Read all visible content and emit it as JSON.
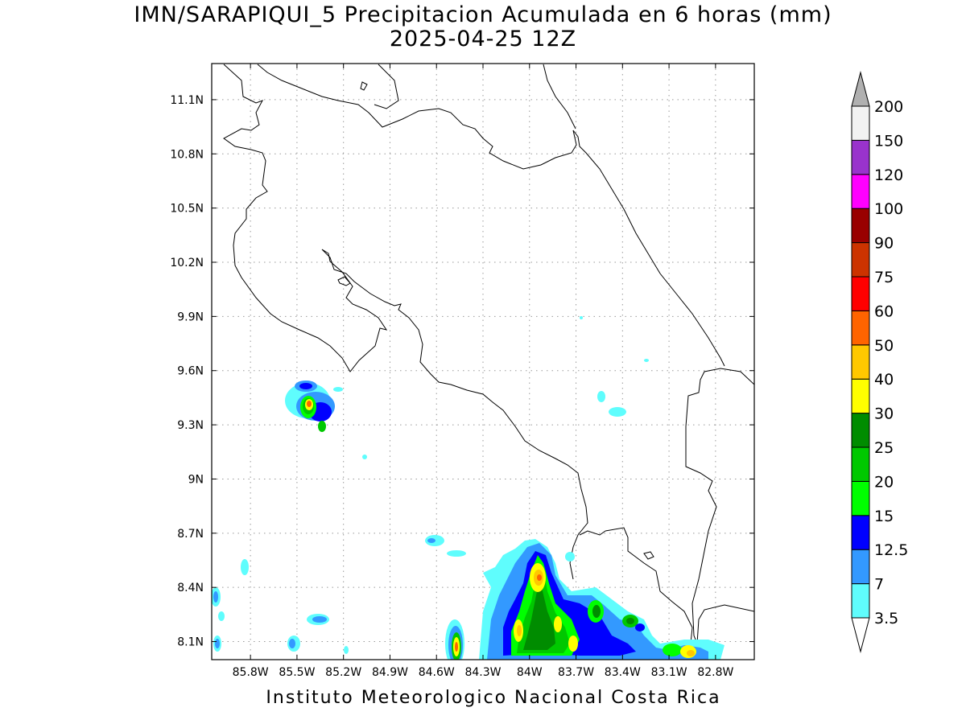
{
  "title_line1": "IMN/SARAPIQUI_5 Precipitacion Acumulada en 6 horas (mm)",
  "title_line2": "2025-04-25 12Z",
  "footer": "Instituto Meteorologico Nacional Costa Rica",
  "map": {
    "lon_range": [
      -86.05,
      -82.55
    ],
    "lat_range": [
      8.0,
      11.3
    ],
    "lon_ticks": [
      {
        "value": -85.8,
        "label": "85.8W"
      },
      {
        "value": -85.5,
        "label": "85.5W"
      },
      {
        "value": -85.2,
        "label": "85.2W"
      },
      {
        "value": -84.9,
        "label": "84.9W"
      },
      {
        "value": -84.6,
        "label": "84.6W"
      },
      {
        "value": -84.3,
        "label": "84.3W"
      },
      {
        "value": -84.0,
        "label": "84W"
      },
      {
        "value": -83.7,
        "label": "83.7W"
      },
      {
        "value": -83.4,
        "label": "83.4W"
      },
      {
        "value": -83.1,
        "label": "83.1W"
      },
      {
        "value": -82.8,
        "label": "82.8W"
      }
    ],
    "lat_ticks": [
      {
        "value": 8.1,
        "label": "8.1N"
      },
      {
        "value": 8.4,
        "label": "8.4N"
      },
      {
        "value": 8.7,
        "label": "8.7N"
      },
      {
        "value": 9.0,
        "label": "9N"
      },
      {
        "value": 9.3,
        "label": "9.3N"
      },
      {
        "value": 9.6,
        "label": "9.6N"
      },
      {
        "value": 9.9,
        "label": "9.9N"
      },
      {
        "value": 10.2,
        "label": "10.2N"
      },
      {
        "value": 10.5,
        "label": "10.5N"
      },
      {
        "value": 10.8,
        "label": "10.8N"
      },
      {
        "value": 11.1,
        "label": "11.1N"
      }
    ],
    "grid": true
  },
  "legend": {
    "units": "mm",
    "levels": [
      {
        "label": "3.5",
        "color": "#5ffdfd"
      },
      {
        "label": "7",
        "color": "#3399ff"
      },
      {
        "label": "12.5",
        "color": "#0000ff"
      },
      {
        "label": "15",
        "color": "#00ff00"
      },
      {
        "label": "20",
        "color": "#00c800"
      },
      {
        "label": "25",
        "color": "#008c00"
      },
      {
        "label": "30",
        "color": "#ffff00"
      },
      {
        "label": "40",
        "color": "#ffc800"
      },
      {
        "label": "50",
        "color": "#ff6400"
      },
      {
        "label": "60",
        "color": "#ff0000"
      },
      {
        "label": "75",
        "color": "#cc3300"
      },
      {
        "label": "90",
        "color": "#990000"
      },
      {
        "label": "100",
        "color": "#ff00ff"
      },
      {
        "label": "120",
        "color": "#9933cc"
      },
      {
        "label": "150",
        "color": "#f2f2f2"
      },
      {
        "label": "200",
        "color": "#b0b0b0"
      }
    ],
    "low_arrow_color": "#ffffff",
    "high_arrow_color": "#b0b0b0"
  }
}
